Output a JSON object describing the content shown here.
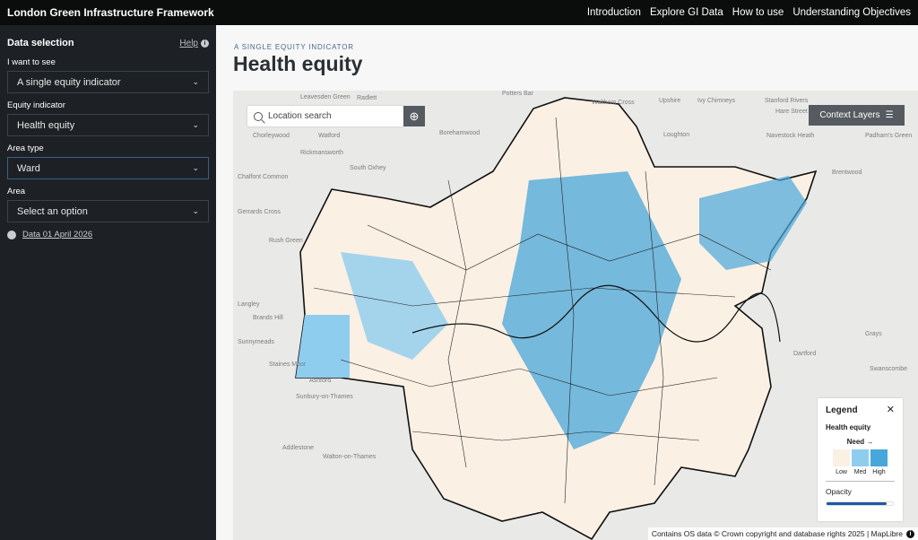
{
  "header": {
    "title": "London Green Infrastructure Framework",
    "nav": [
      "Introduction",
      "Explore GI Data",
      "How to use",
      "Understanding Objectives"
    ]
  },
  "sidebar": {
    "heading": "Data selection",
    "help": "Help",
    "fields": [
      {
        "label": "I want to see",
        "value": "A single equity indicator"
      },
      {
        "label": "Equity indicator",
        "value": "Health equity"
      },
      {
        "label": "Area type",
        "value": "Ward"
      },
      {
        "label": "Area",
        "value": "Select an option"
      }
    ],
    "data_date": "Data 01 April 2026"
  },
  "main": {
    "kicker": "A SINGLE EQUITY INDICATOR",
    "title": "Health equity"
  },
  "map": {
    "search_placeholder": "Location search",
    "context_layers": "Context Layers",
    "places": [
      "Leavesden Green",
      "Potters Bar",
      "Waltham Cross",
      "Upshire",
      "Ivy Chimneys",
      "Stanford Rivers",
      "Hare Street",
      "Chorleywood",
      "Watford",
      "Radlett",
      "Borehamwood",
      "Loughton",
      "Navestock Heath",
      "Padham's Green",
      "Rickmansworth",
      "South Oxhey",
      "Chalfont Common",
      "Brentwood",
      "Gerrards Cross",
      "Rush Green",
      "Langley",
      "Brands Hill",
      "Sunnymeads",
      "Staines Moor",
      "Ashford",
      "Sunbury-on-Thames",
      "Addlestone",
      "Walton-on-Thames",
      "Grays",
      "Dartford",
      "Swanscombe"
    ],
    "attribution": "Contains OS data © Crown copyright and database rights 2025 | MapLibre"
  },
  "legend": {
    "title": "Legend",
    "indicator": "Health equity",
    "need": "Need →",
    "classes": [
      {
        "label": "Low",
        "color": "#fbf0e4"
      },
      {
        "label": "Med",
        "color": "#8fcdee"
      },
      {
        "label": "High",
        "color": "#48a7da"
      }
    ],
    "opacity_label": "Opacity",
    "opacity": 0.9
  }
}
